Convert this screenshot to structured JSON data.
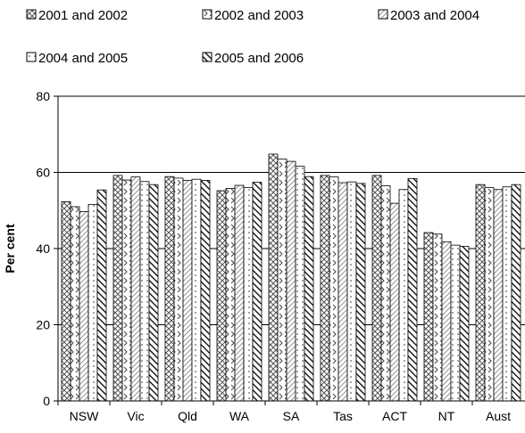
{
  "chart_data": {
    "type": "bar",
    "ylabel": "Per cent",
    "xlabel": "",
    "ylim": [
      0,
      80
    ],
    "yticks": [
      0,
      20,
      40,
      60,
      80
    ],
    "grid": true,
    "legend_position": "top",
    "categories": [
      "NSW",
      "Vic",
      "Qld",
      "WA",
      "SA",
      "Tas",
      "ACT",
      "NT",
      "Aust"
    ],
    "series": [
      {
        "name": "2001 and 2002",
        "pattern": "crosshatch",
        "values": [
          52.3,
          59.2,
          58.9,
          55.2,
          64.8,
          59.2,
          59.2,
          44.2,
          56.8
        ]
      },
      {
        "name": "2002 and 2003",
        "pattern": "chevron",
        "values": [
          51.0,
          58.0,
          58.5,
          55.8,
          63.5,
          58.8,
          56.5,
          43.8,
          56.0
        ]
      },
      {
        "name": "2003 and 2004",
        "pattern": "diagonal",
        "values": [
          49.7,
          58.8,
          57.9,
          56.6,
          62.9,
          57.3,
          51.9,
          41.8,
          55.5
        ]
      },
      {
        "name": "2004 and 2005",
        "pattern": "dotted",
        "values": [
          51.6,
          57.6,
          58.2,
          56.0,
          61.6,
          57.5,
          55.5,
          40.9,
          56.2
        ]
      },
      {
        "name": "2005 and 2006",
        "pattern": "heavy-diagonal",
        "values": [
          55.4,
          56.8,
          57.9,
          57.4,
          58.9,
          57.1,
          58.4,
          40.6,
          56.8
        ]
      }
    ]
  }
}
